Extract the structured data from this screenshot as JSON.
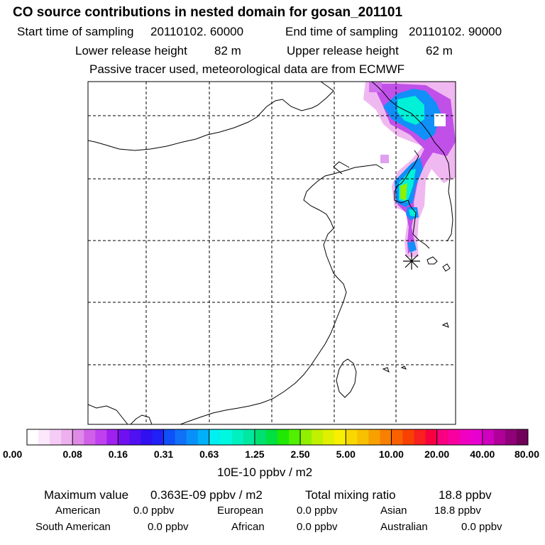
{
  "header": {
    "title": "CO  source contributions in nested domain for gosan_201101",
    "start_label": "Start time of sampling",
    "start_value": "20110102. 60000",
    "end_label": "End time of sampling",
    "end_value": "20110102. 90000",
    "lower_label": "Lower release height",
    "lower_value": "82 m",
    "upper_label": "Upper release height",
    "upper_value": "62 m",
    "note": "Passive tracer used, meteorological data are from ECMWF"
  },
  "map": {
    "grid_lines": {
      "vertical": 5,
      "horizontal": 5
    },
    "station_marker": "asterisk"
  },
  "colorbar": {
    "unit": "10E-10 ppbv / m2",
    "tick_labels": [
      "0.00",
      "0.08",
      "0.16",
      "0.31",
      "0.63",
      "1.25",
      "2.50",
      "5.00",
      "10.00",
      "20.00",
      "40.00",
      "80.00"
    ],
    "colors": [
      "#ffffff",
      "#fbe8fb",
      "#f5ccf5",
      "#eeb0ee",
      "#e08ae8",
      "#d060e8",
      "#c040f0",
      "#a020f0",
      "#7010f0",
      "#5010f0",
      "#3010f0",
      "#2020f8",
      "#1050f8",
      "#1070f8",
      "#0890f8",
      "#00b0f8",
      "#00f0f0",
      "#00f8e0",
      "#00f0c0",
      "#00e8a0",
      "#00e070",
      "#00e040",
      "#20e800",
      "#50f000",
      "#90f000",
      "#c0f000",
      "#e0f000",
      "#f8f000",
      "#f8d800",
      "#f8c000",
      "#f8a000",
      "#f88000",
      "#f86000",
      "#f84000",
      "#f82020",
      "#f80040",
      "#f80080",
      "#f800a0",
      "#f000c0",
      "#e800d0",
      "#d000c0",
      "#b00098",
      "#900078",
      "#700058"
    ]
  },
  "summary": {
    "max_label": "Maximum value",
    "max_value": "0.363E-09 ppbv / m2",
    "total_label": "Total mixing ratio",
    "total_value": "18.8 ppbv",
    "regions": [
      {
        "name": "American",
        "value": "0.0 ppbv"
      },
      {
        "name": "European",
        "value": "0.0 ppbv"
      },
      {
        "name": "Asian",
        "value": "18.8 ppbv"
      },
      {
        "name": "South American",
        "value": "0.0 ppbv"
      },
      {
        "name": "African",
        "value": "0.0 ppbv"
      },
      {
        "name": "Australian",
        "value": "0.0 ppbv"
      }
    ]
  }
}
